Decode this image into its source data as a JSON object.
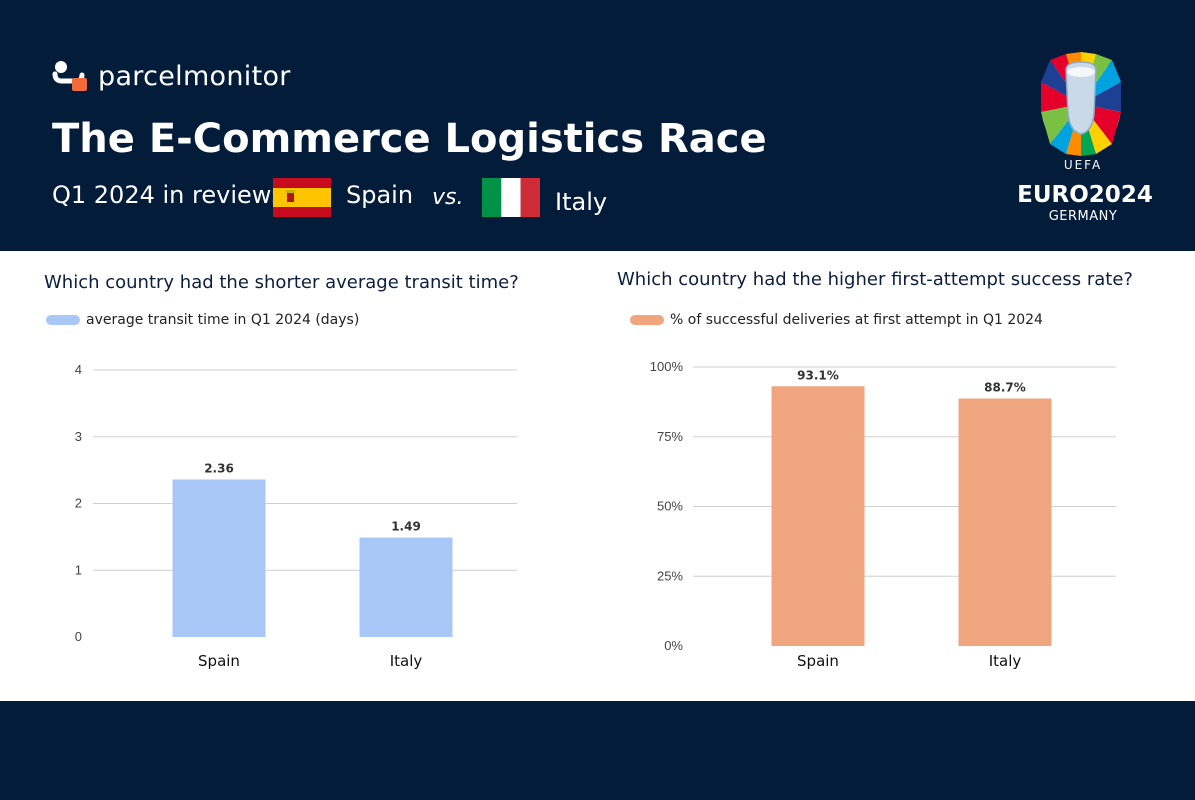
{
  "header": {
    "brand": "parcelmonitor",
    "title": "The E-Commerce Logistics Race",
    "subtitle": "Q1 2024 in review:",
    "country_a": "Spain",
    "vs": "vs.",
    "country_b": "Italy",
    "event_logo": {
      "org": "UEFA",
      "name": "EURO2024",
      "country": "GERMANY"
    }
  },
  "colors": {
    "background": "#031c3a",
    "panel": "#ffffff",
    "transit_bar": "#a8c7f7",
    "success_bar": "#efa57d",
    "spain_red": "#c60b1e",
    "spain_yellow": "#ffc400",
    "italy_green": "#009246",
    "italy_red": "#ce2b37",
    "brand_orange": "#f26b3a"
  },
  "chart_data": [
    {
      "type": "bar",
      "title": "Which country had the shorter average transit time?",
      "legend": "average transit time in Q1 2024 (days)",
      "legend_position": "top-left",
      "categories": [
        "Spain",
        "Italy"
      ],
      "series": [
        {
          "name": "average transit time in Q1 2024 (days)",
          "values": [
            2.36,
            1.49
          ]
        }
      ],
      "data_labels": [
        "2.36",
        "1.49"
      ],
      "ylim": [
        0,
        4
      ],
      "yticks": [
        0,
        1,
        2,
        3,
        4
      ],
      "ytick_labels": [
        "0",
        "1",
        "2",
        "3",
        "4"
      ],
      "grid": true
    },
    {
      "type": "bar",
      "title": "Which country had the higher first-attempt success rate?",
      "legend": "% of successful deliveries at first attempt in Q1 2024",
      "legend_position": "top-left",
      "categories": [
        "Spain",
        "Italy"
      ],
      "series": [
        {
          "name": "% of successful deliveries at first attempt in Q1 2024",
          "values": [
            93.1,
            88.7
          ]
        }
      ],
      "data_labels": [
        "93.1%",
        "88.7%"
      ],
      "ylim": [
        0,
        100
      ],
      "yticks": [
        0,
        25,
        50,
        75,
        100
      ],
      "ytick_labels": [
        "0%",
        "25%",
        "50%",
        "75%",
        "100%"
      ],
      "grid": true
    }
  ]
}
